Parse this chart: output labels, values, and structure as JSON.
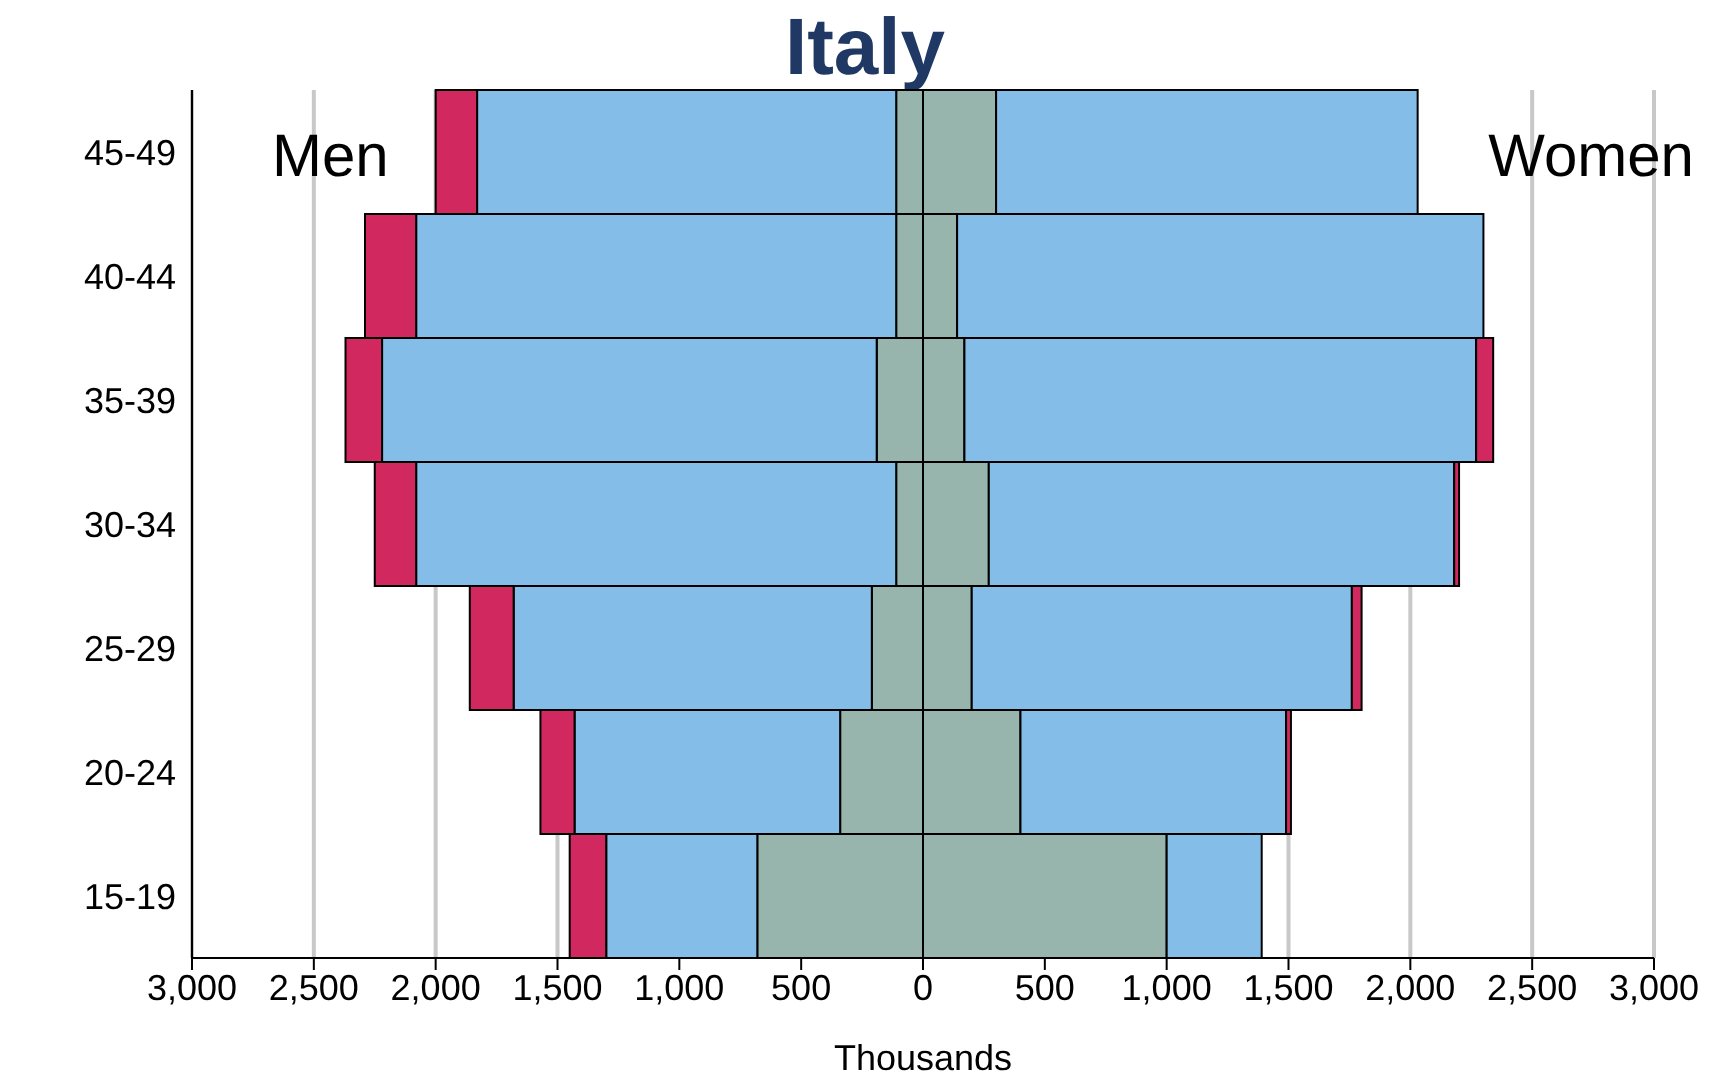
{
  "chart_data": {
    "type": "bar",
    "title": "Italy",
    "xlabel": "Thousands",
    "orientation": "horizontal",
    "stacked": true,
    "categories": [
      "45-49",
      "40-44",
      "35-39",
      "30-34",
      "25-29",
      "20-24",
      "15-19"
    ],
    "series": [
      {
        "color": "#97b5ad",
        "values": [
          -110,
          -110,
          -190,
          -110,
          -210,
          -340,
          -680
        ]
      },
      {
        "color": "#83bde8",
        "values": [
          -1720,
          -1970,
          -2030,
          -1970,
          -1470,
          -1090,
          -620
        ]
      },
      {
        "color": "#d0285f",
        "values": [
          -170,
          -210,
          -150,
          -170,
          -180,
          -140,
          -150
        ]
      },
      {
        "color": "#97b5ad",
        "values": [
          300,
          140,
          170,
          270,
          200,
          400,
          1000
        ]
      },
      {
        "color": "#83bde8",
        "values": [
          1730,
          2160,
          2100,
          1910,
          1560,
          1090,
          390
        ]
      },
      {
        "color": "#d0285f",
        "values": [
          null,
          null,
          70,
          20,
          40,
          20,
          null
        ]
      }
    ],
    "xlim": [
      -3000,
      3000
    ],
    "xticks": [
      {
        "value": -3000,
        "label": "3,000"
      },
      {
        "value": -2500,
        "label": "2,500"
      },
      {
        "value": -2000,
        "label": "2,000"
      },
      {
        "value": -1500,
        "label": "1,500"
      },
      {
        "value": -1000,
        "label": "1,000"
      },
      {
        "value": -500,
        "label": "500"
      },
      0,
      500,
      {
        "value": 1000,
        "label": "1,000"
      },
      {
        "value": 1500,
        "label": "1,500"
      },
      {
        "value": 2000,
        "label": "2,000"
      },
      {
        "value": 2500,
        "label": "2,500"
      },
      {
        "value": 3000,
        "label": "3,000"
      }
    ],
    "grid": "x",
    "annotations": [
      "Men",
      "Women"
    ]
  }
}
